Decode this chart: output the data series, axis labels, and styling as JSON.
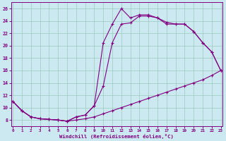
{
  "xlabel": "Windchill (Refroidissement éolien,°C)",
  "bg_color": "#cce8f0",
  "line_color": "#800080",
  "grid_color": "#99ccbb",
  "xmin": 0,
  "xmax": 23,
  "ymin": 7,
  "ymax": 27,
  "yticks": [
    8,
    10,
    12,
    14,
    16,
    18,
    20,
    22,
    24,
    26
  ],
  "xticks": [
    0,
    1,
    2,
    3,
    4,
    5,
    6,
    7,
    8,
    9,
    10,
    11,
    12,
    13,
    14,
    15,
    16,
    17,
    18,
    19,
    20,
    21,
    22,
    23
  ],
  "line1_x": [
    0,
    1,
    2,
    3,
    4,
    5,
    6,
    7,
    8,
    9,
    10,
    11,
    12,
    13,
    14,
    15,
    16,
    17,
    18,
    19,
    20,
    21,
    22,
    23
  ],
  "line1_y": [
    11,
    9.5,
    8.5,
    8.2,
    8.1,
    8.0,
    7.8,
    8.0,
    8.2,
    8.5,
    9.0,
    9.5,
    10.0,
    10.5,
    11.0,
    11.5,
    12.0,
    12.5,
    13.0,
    13.5,
    14.0,
    14.5,
    15.2,
    16.0
  ],
  "line2_x": [
    0,
    1,
    2,
    3,
    4,
    5,
    6,
    7,
    8,
    9,
    10,
    11,
    12,
    13,
    14,
    15,
    16,
    17,
    18,
    19,
    20,
    21,
    22,
    23
  ],
  "line2_y": [
    11,
    9.5,
    8.5,
    8.2,
    8.1,
    8.0,
    7.8,
    8.5,
    8.8,
    10.3,
    20.5,
    23.5,
    26.0,
    24.5,
    25.0,
    25.0,
    24.5,
    23.5,
    23.5,
    23.5,
    22.3,
    20.5,
    19.0,
    16.0
  ],
  "line3_x": [
    0,
    1,
    2,
    3,
    4,
    5,
    6,
    7,
    8,
    9,
    10,
    11,
    12,
    13,
    14,
    15,
    16,
    17,
    18,
    19,
    20,
    21,
    22,
    23
  ],
  "line3_y": [
    11,
    9.5,
    8.5,
    8.2,
    8.1,
    8.0,
    7.8,
    8.5,
    8.8,
    10.3,
    13.5,
    20.5,
    23.5,
    23.7,
    24.8,
    24.8,
    24.5,
    23.8,
    23.5,
    23.5,
    22.3,
    20.5,
    19.0,
    16.0
  ],
  "marker": "+"
}
